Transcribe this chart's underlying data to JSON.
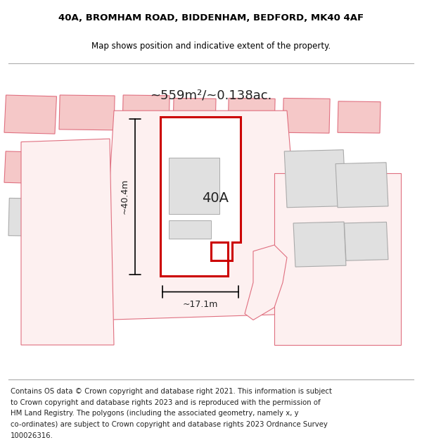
{
  "title_line1": "40A, BROMHAM ROAD, BIDDENHAM, BEDFORD, MK40 4AF",
  "title_line2": "Map shows position and indicative extent of the property.",
  "area_text": "~559m²/~0.138ac.",
  "label_40A": "40A",
  "dim_height": "~40.4m",
  "dim_width": "~17.1m",
  "footer_lines": [
    "Contains OS data © Crown copyright and database right 2021. This information is subject",
    "to Crown copyright and database rights 2023 and is reproduced with the permission of",
    "HM Land Registry. The polygons (including the associated geometry, namely x, y",
    "co-ordinates) are subject to Crown copyright and database rights 2023 Ordnance Survey",
    "100026316."
  ],
  "background_color": "#ffffff",
  "red_outline": "#e07080",
  "dark_red": "#cc0000",
  "grey_fill": "#e0e0e0",
  "pink": "#f5c8c8",
  "light_bg": "#fdf0f0"
}
